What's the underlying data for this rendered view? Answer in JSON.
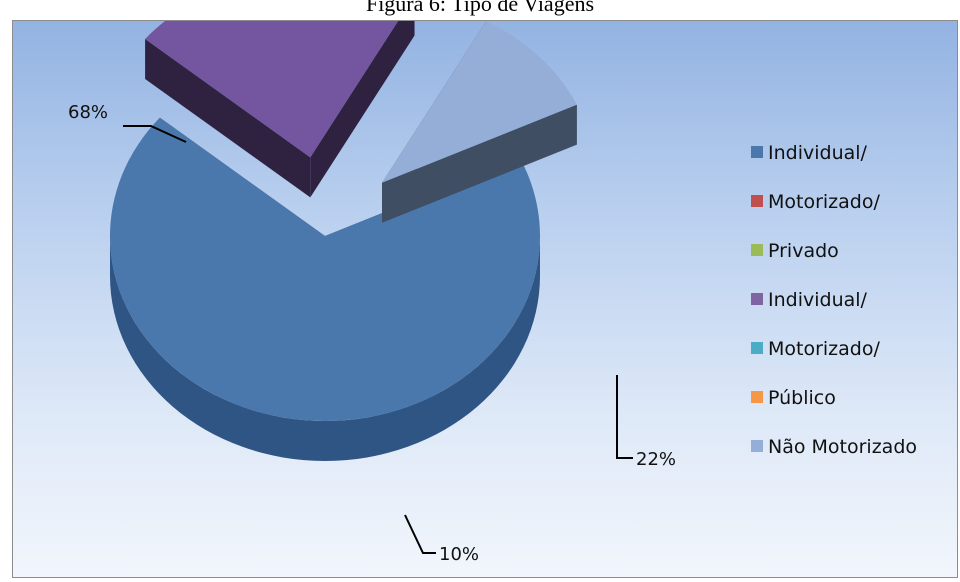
{
  "chart_data": {
    "type": "pie",
    "title": "Figura 6: Tipo de Viagens",
    "slices": [
      {
        "label": "Individual/ Motorizado/ Privado",
        "value": 68,
        "data_label": "68%",
        "color": "#4a77ac",
        "side_color": "#2f5585"
      },
      {
        "label": "Individual/ Motorizado/ Público",
        "value": 22,
        "data_label": "22%",
        "color": "#7455a0",
        "side_color": "#2f2240"
      },
      {
        "label": "Não Motorizado",
        "value": 10,
        "data_label": "10%",
        "color": "#95aed7",
        "side_color": "#3f4e63"
      }
    ],
    "legend": {
      "placement": "right",
      "entries": [
        {
          "text": "Individual/",
          "color": "#4a77ac"
        },
        {
          "text": "Motorizado/",
          "color": "#c0504d"
        },
        {
          "text": "Privado",
          "color": "#9bbb59"
        },
        {
          "text": "Individual/",
          "color": "#8064a2"
        },
        {
          "text": "Motorizado/",
          "color": "#4bacc6"
        },
        {
          "text": "Público",
          "color": "#f79646"
        },
        {
          "text": "Não Motorizado",
          "color": "#95aed7"
        }
      ]
    }
  }
}
